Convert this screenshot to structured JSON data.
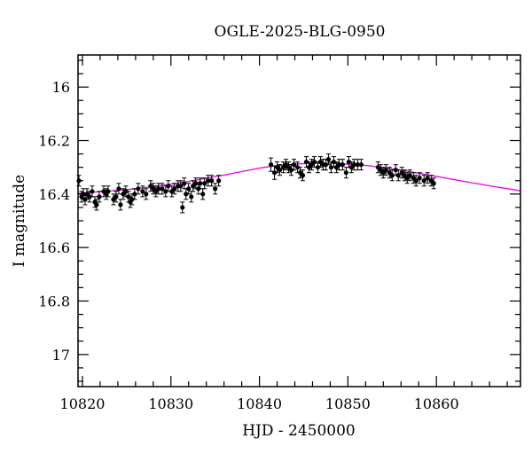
{
  "chart_data": {
    "type": "scatter",
    "title": "OGLE-2025-BLG-0950",
    "xlabel": "HJD - 2450000",
    "ylabel": "I magnitude",
    "xlim": [
      10819.5,
      10869.5
    ],
    "ylim": [
      17.12,
      15.88
    ],
    "y_inverted": true,
    "x_ticks": [
      10820,
      10830,
      10840,
      10850,
      10860
    ],
    "x_tick_labels": [
      "10820",
      "10830",
      "10840",
      "10850",
      "10860"
    ],
    "y_ticks": [
      16,
      16.2,
      16.4,
      16.6,
      16.8,
      17
    ],
    "y_tick_labels": [
      "16",
      "16.2",
      "16.4",
      "16.6",
      "16.8",
      "17"
    ],
    "grid": false,
    "legend": "none",
    "colors": {
      "points": "#000000",
      "model": "#ee00ee",
      "axes": "#000000"
    },
    "series": [
      {
        "type": "scatter_errorbar",
        "x": [
          10819.6,
          10819.9,
          10820.1,
          10820.3,
          10820.5,
          10820.8,
          10821.1,
          10821.4,
          10821.6,
          10821.9,
          10822.4,
          10822.7,
          10822.9,
          10823.5,
          10823.8,
          10824.1,
          10824.3,
          10824.6,
          10824.9,
          10825.2,
          10825.4,
          10825.6,
          10825.9,
          10826.3,
          10826.8,
          10827.2,
          10827.7,
          10828.0,
          10828.3,
          10828.6,
          10829.0,
          10829.4,
          10829.7,
          10830.1,
          10830.4,
          10830.8,
          10831.1,
          10831.3,
          10831.5,
          10831.7,
          10832.0,
          10832.3,
          10832.5,
          10832.8,
          10833.1,
          10833.3,
          10833.6,
          10833.8,
          10834.2,
          10834.6,
          10835.0,
          10835.4,
          10841.3,
          10841.7,
          10842.0,
          10842.3,
          10842.7,
          10843.0,
          10843.3,
          10843.6,
          10843.9,
          10844.3,
          10844.6,
          10844.9,
          10845.3,
          10845.6,
          10845.9,
          10846.2,
          10846.6,
          10846.9,
          10847.2,
          10847.5,
          10847.8,
          10848.1,
          10848.4,
          10848.7,
          10849.0,
          10849.4,
          10849.8,
          10850.1,
          10850.4,
          10850.7,
          10851.1,
          10851.5,
          10853.4,
          10853.7,
          10854.0,
          10854.3,
          10854.7,
          10855.0,
          10855.4,
          10855.7,
          10856.1,
          10856.4,
          10856.7,
          10857.0,
          10857.4,
          10857.7,
          10858.1,
          10858.6,
          10859.0,
          10859.4,
          10859.7
        ],
        "y": [
          16.35,
          16.41,
          16.4,
          16.42,
          16.4,
          16.41,
          16.39,
          16.43,
          16.44,
          16.41,
          16.39,
          16.4,
          16.39,
          16.42,
          16.41,
          16.38,
          16.44,
          16.4,
          16.39,
          16.41,
          16.43,
          16.42,
          16.4,
          16.38,
          16.39,
          16.4,
          16.37,
          16.38,
          16.39,
          16.38,
          16.38,
          16.39,
          16.37,
          16.39,
          16.38,
          16.37,
          16.37,
          16.45,
          16.36,
          16.4,
          16.38,
          16.41,
          16.37,
          16.36,
          16.38,
          16.36,
          16.4,
          16.36,
          16.35,
          16.35,
          16.38,
          16.35,
          16.29,
          16.32,
          16.3,
          16.31,
          16.3,
          16.29,
          16.3,
          16.31,
          16.29,
          16.3,
          16.32,
          16.33,
          16.28,
          16.3,
          16.29,
          16.28,
          16.3,
          16.28,
          16.29,
          16.29,
          16.27,
          16.3,
          16.28,
          16.3,
          16.29,
          16.29,
          16.32,
          16.28,
          16.3,
          16.29,
          16.29,
          16.29,
          16.3,
          16.31,
          16.32,
          16.31,
          16.32,
          16.33,
          16.31,
          16.33,
          16.32,
          16.33,
          16.34,
          16.33,
          16.34,
          16.35,
          16.34,
          16.35,
          16.34,
          16.35,
          16.36
        ],
        "yerr": [
          0.02,
          0.02,
          0.02,
          0.02,
          0.02,
          0.02,
          0.02,
          0.02,
          0.02,
          0.02,
          0.02,
          0.02,
          0.02,
          0.02,
          0.02,
          0.02,
          0.02,
          0.02,
          0.02,
          0.02,
          0.02,
          0.02,
          0.02,
          0.02,
          0.02,
          0.02,
          0.02,
          0.02,
          0.02,
          0.02,
          0.02,
          0.02,
          0.02,
          0.02,
          0.02,
          0.02,
          0.02,
          0.02,
          0.02,
          0.02,
          0.02,
          0.02,
          0.02,
          0.02,
          0.02,
          0.02,
          0.02,
          0.02,
          0.02,
          0.02,
          0.02,
          0.02,
          0.025,
          0.025,
          0.02,
          0.02,
          0.02,
          0.02,
          0.02,
          0.02,
          0.02,
          0.02,
          0.02,
          0.02,
          0.02,
          0.02,
          0.02,
          0.02,
          0.02,
          0.02,
          0.02,
          0.02,
          0.02,
          0.02,
          0.02,
          0.02,
          0.02,
          0.02,
          0.02,
          0.02,
          0.02,
          0.02,
          0.02,
          0.02,
          0.02,
          0.02,
          0.02,
          0.02,
          0.02,
          0.02,
          0.02,
          0.02,
          0.02,
          0.02,
          0.02,
          0.02,
          0.02,
          0.02,
          0.02,
          0.02,
          0.02,
          0.02,
          0.02
        ]
      },
      {
        "type": "line",
        "x": [
          10819.5,
          10822,
          10824,
          10826,
          10828,
          10830,
          10832,
          10834,
          10836,
          10838,
          10840,
          10841,
          10842,
          10843,
          10844,
          10845,
          10846,
          10847,
          10848,
          10849,
          10850,
          10851,
          10852,
          10854,
          10856,
          10858,
          10860,
          10862,
          10864,
          10866,
          10868,
          10869.5
        ],
        "y": [
          16.398,
          16.391,
          16.386,
          16.38,
          16.372,
          16.363,
          16.353,
          16.341,
          16.329,
          16.316,
          16.303,
          16.298,
          16.294,
          16.291,
          16.288,
          16.286,
          16.285,
          16.285,
          16.285,
          16.286,
          16.288,
          16.29,
          16.293,
          16.301,
          16.311,
          16.322,
          16.334,
          16.346,
          16.358,
          16.369,
          16.38,
          16.388
        ]
      }
    ]
  }
}
